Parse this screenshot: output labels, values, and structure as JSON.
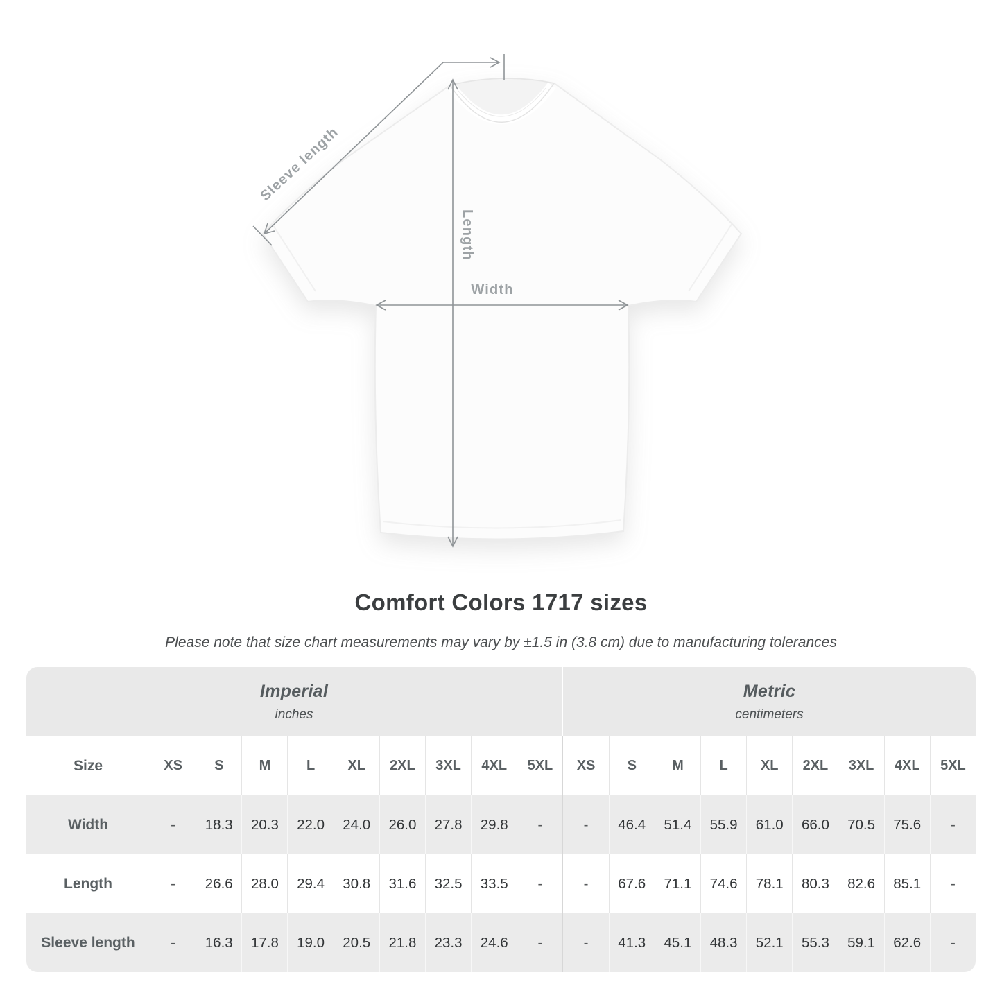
{
  "title": "Comfort Colors 1717 sizes",
  "subtitle": "Please note that size chart measurements may vary by ±1.5 in (3.8 cm) due to manufacturing tolerances",
  "diagram": {
    "sleeve_label": "Sleeve length",
    "length_label": "Length",
    "width_label": "Width"
  },
  "table": {
    "corner_label": "Size",
    "sections": [
      {
        "name": "Imperial",
        "unit": "inches",
        "sizes": [
          "XS",
          "S",
          "M",
          "L",
          "XL",
          "2XL",
          "3XL",
          "4XL",
          "5XL"
        ]
      },
      {
        "name": "Metric",
        "unit": "centimeters",
        "sizes": [
          "XS",
          "S",
          "M",
          "L",
          "XL",
          "2XL",
          "3XL",
          "4XL",
          "5XL"
        ]
      }
    ],
    "rows": [
      {
        "label": "Width",
        "imperial": [
          "-",
          "18.3",
          "20.3",
          "22.0",
          "24.0",
          "26.0",
          "27.8",
          "29.8",
          "-"
        ],
        "metric": [
          "-",
          "46.4",
          "51.4",
          "55.9",
          "61.0",
          "66.0",
          "70.5",
          "75.6",
          "-"
        ]
      },
      {
        "label": "Length",
        "imperial": [
          "-",
          "26.6",
          "28.0",
          "29.4",
          "30.8",
          "31.6",
          "32.5",
          "33.5",
          "-"
        ],
        "metric": [
          "-",
          "67.6",
          "71.1",
          "74.6",
          "78.1",
          "80.3",
          "82.6",
          "85.1",
          "-"
        ]
      },
      {
        "label": "Sleeve length",
        "imperial": [
          "-",
          "16.3",
          "17.8",
          "19.0",
          "20.5",
          "21.8",
          "23.3",
          "24.6",
          "-"
        ],
        "metric": [
          "-",
          "41.3",
          "45.1",
          "48.3",
          "52.1",
          "55.3",
          "59.1",
          "62.6",
          "-"
        ]
      }
    ]
  },
  "chart_data": {
    "type": "table",
    "title": "Comfort Colors 1717 sizes",
    "note": "Please note that size chart measurements may vary by ±1.5 in (3.8 cm) due to manufacturing tolerances",
    "categories": [
      "XS",
      "S",
      "M",
      "L",
      "XL",
      "2XL",
      "3XL",
      "4XL",
      "5XL"
    ],
    "series": [
      {
        "name": "Width (inches)",
        "values": [
          null,
          18.3,
          20.3,
          22.0,
          24.0,
          26.0,
          27.8,
          29.8,
          null
        ]
      },
      {
        "name": "Length (inches)",
        "values": [
          null,
          26.6,
          28.0,
          29.4,
          30.8,
          31.6,
          32.5,
          33.5,
          null
        ]
      },
      {
        "name": "Sleeve length (inches)",
        "values": [
          null,
          16.3,
          17.8,
          19.0,
          20.5,
          21.8,
          23.3,
          24.6,
          null
        ]
      },
      {
        "name": "Width (cm)",
        "values": [
          null,
          46.4,
          51.4,
          55.9,
          61.0,
          66.0,
          70.5,
          75.6,
          null
        ]
      },
      {
        "name": "Length (cm)",
        "values": [
          null,
          67.6,
          71.1,
          74.6,
          78.1,
          80.3,
          82.6,
          85.1,
          null
        ]
      },
      {
        "name": "Sleeve length (cm)",
        "values": [
          null,
          41.3,
          45.1,
          48.3,
          52.1,
          55.3,
          59.1,
          62.6,
          null
        ]
      }
    ]
  },
  "colors": {
    "table_band": "#e9e9e9",
    "row_alt": "#ebebeb",
    "dimension_line": "#8f9497",
    "dimension_label": "#9da2a5",
    "title_text": "#3b3e40"
  }
}
